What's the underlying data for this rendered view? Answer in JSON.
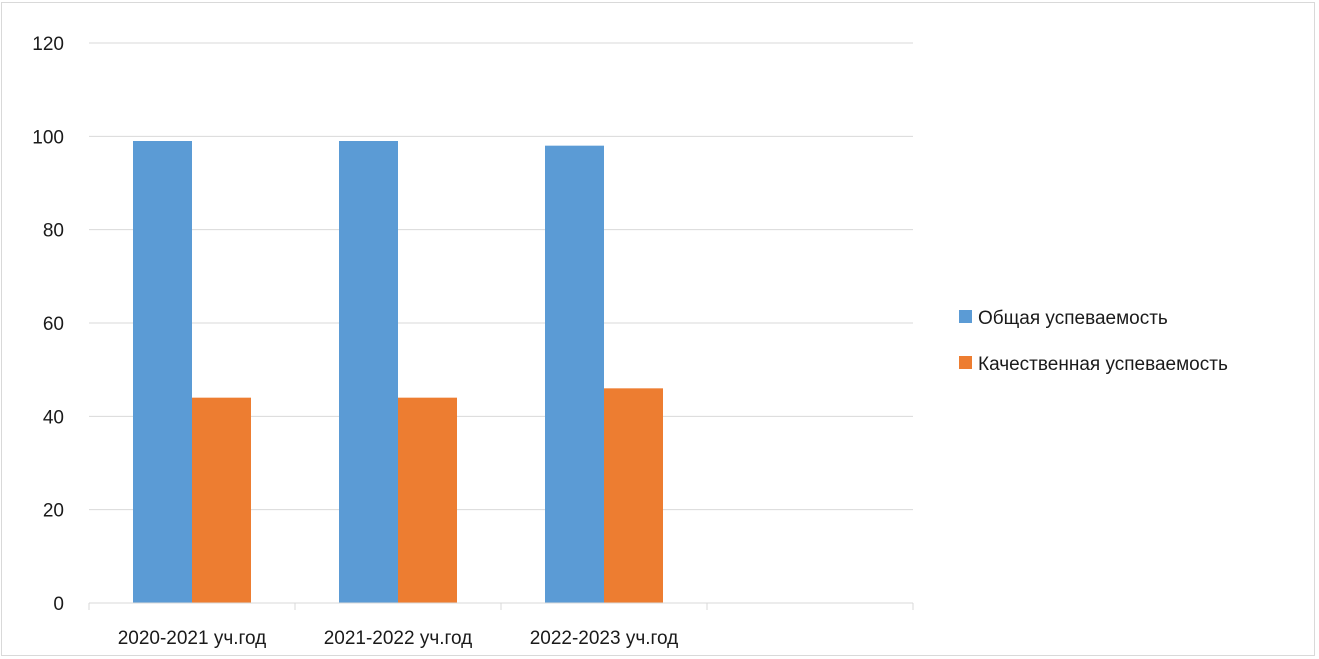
{
  "chart_data": {
    "type": "bar",
    "categories": [
      "2020-2021 уч.год",
      "2021-2022 уч.год",
      "2022-2023 уч.год",
      ""
    ],
    "series": [
      {
        "name": "Общая успеваемость",
        "values": [
          99,
          99,
          98,
          null
        ],
        "color": "#5b9bd5"
      },
      {
        "name": "Качественная успеваемость",
        "values": [
          44,
          44,
          46,
          null
        ],
        "color": "#ed7d31"
      }
    ],
    "ylim": [
      0,
      120
    ],
    "yticks": [
      0,
      20,
      40,
      60,
      80,
      100,
      120
    ],
    "grid": true,
    "legend_position": "right",
    "title": "",
    "xlabel": "",
    "ylabel": ""
  }
}
